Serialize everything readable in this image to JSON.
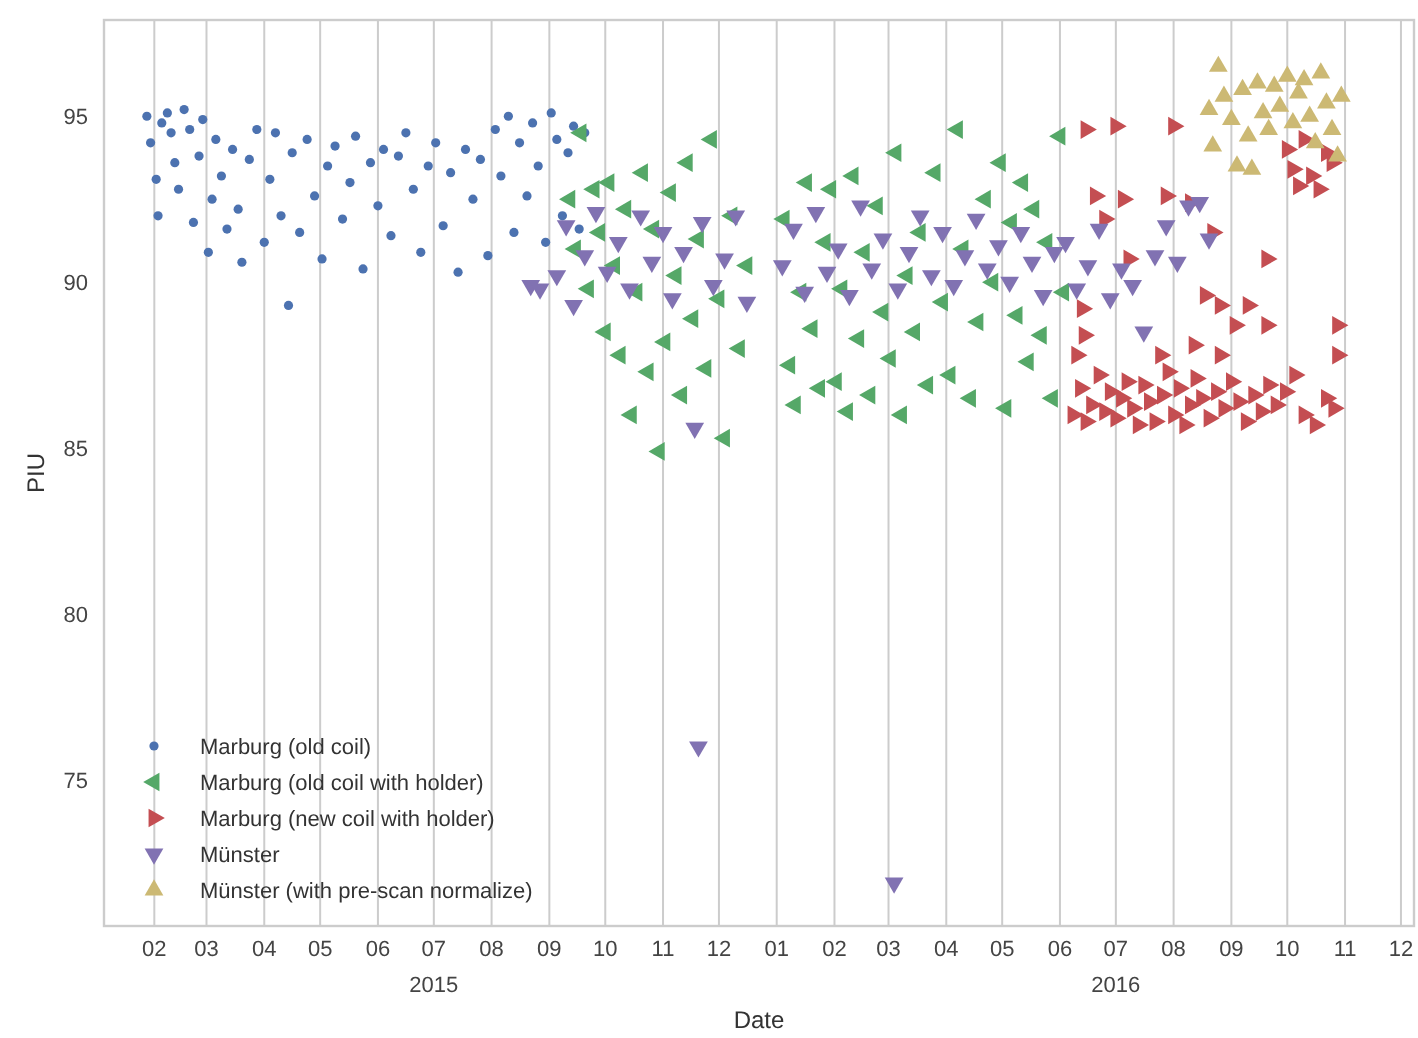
{
  "chart_data": {
    "type": "scatter",
    "xlabel": "Date",
    "ylabel": "PIU",
    "xlim": [
      "2015-01-05",
      "2016-12-08"
    ],
    "ylim": [
      70.6,
      97.9
    ],
    "yticks": [
      75,
      80,
      85,
      90,
      95
    ],
    "xticks": [
      {
        "value": "2015-02-01",
        "label": "02"
      },
      {
        "value": "2015-03-01",
        "label": "03"
      },
      {
        "value": "2015-04-01",
        "label": "04"
      },
      {
        "value": "2015-05-01",
        "label": "05"
      },
      {
        "value": "2015-06-01",
        "label": "06"
      },
      {
        "value": "2015-07-01",
        "label": "07\n2015"
      },
      {
        "value": "2015-08-01",
        "label": "08"
      },
      {
        "value": "2015-09-01",
        "label": "09"
      },
      {
        "value": "2015-10-01",
        "label": "10"
      },
      {
        "value": "2015-11-01",
        "label": "11"
      },
      {
        "value": "2015-12-01",
        "label": "12"
      },
      {
        "value": "2016-01-01",
        "label": "01"
      },
      {
        "value": "2016-02-01",
        "label": "02"
      },
      {
        "value": "2016-03-01",
        "label": "03"
      },
      {
        "value": "2016-04-01",
        "label": "04"
      },
      {
        "value": "2016-05-01",
        "label": "05"
      },
      {
        "value": "2016-06-01",
        "label": "06"
      },
      {
        "value": "2016-07-01",
        "label": "07\n2016"
      },
      {
        "value": "2016-08-01",
        "label": "08"
      },
      {
        "value": "2016-09-01",
        "label": "09"
      },
      {
        "value": "2016-10-01",
        "label": "10"
      },
      {
        "value": "2016-11-01",
        "label": "11"
      },
      {
        "value": "2016-12-01",
        "label": "12"
      }
    ],
    "grid": "x",
    "legend": "bottom left",
    "series": [
      {
        "name": "Marburg (old coil)",
        "color": "#4c72b0",
        "marker": "circle",
        "x": [
          "2015-01-28",
          "2015-01-30",
          "2015-02-02",
          "2015-02-03",
          "2015-02-05",
          "2015-02-08",
          "2015-02-10",
          "2015-02-12",
          "2015-02-14",
          "2015-02-17",
          "2015-02-20",
          "2015-02-22",
          "2015-02-25",
          "2015-02-27",
          "2015-03-02",
          "2015-03-04",
          "2015-03-06",
          "2015-03-09",
          "2015-03-12",
          "2015-03-15",
          "2015-03-18",
          "2015-03-20",
          "2015-03-24",
          "2015-03-28",
          "2015-04-01",
          "2015-04-04",
          "2015-04-07",
          "2015-04-10",
          "2015-04-14",
          "2015-04-16",
          "2015-04-20",
          "2015-04-24",
          "2015-04-28",
          "2015-05-02",
          "2015-05-05",
          "2015-05-09",
          "2015-05-13",
          "2015-05-17",
          "2015-05-20",
          "2015-05-24",
          "2015-05-28",
          "2015-06-01",
          "2015-06-04",
          "2015-06-08",
          "2015-06-12",
          "2015-06-16",
          "2015-06-20",
          "2015-06-24",
          "2015-06-28",
          "2015-07-02",
          "2015-07-06",
          "2015-07-10",
          "2015-07-14",
          "2015-07-18",
          "2015-07-22",
          "2015-07-26",
          "2015-07-30",
          "2015-08-03",
          "2015-08-06",
          "2015-08-10",
          "2015-08-13",
          "2015-08-16",
          "2015-08-20",
          "2015-08-23",
          "2015-08-26",
          "2015-08-30",
          "2015-09-02",
          "2015-09-05",
          "2015-09-08",
          "2015-09-11",
          "2015-09-14",
          "2015-09-17",
          "2015-09-20"
        ],
        "values": [
          95.0,
          94.2,
          93.1,
          92.0,
          94.8,
          95.1,
          94.5,
          93.6,
          92.8,
          95.2,
          94.6,
          91.8,
          93.8,
          94.9,
          90.9,
          92.5,
          94.3,
          93.2,
          91.6,
          94.0,
          92.2,
          90.6,
          93.7,
          94.6,
          91.2,
          93.1,
          94.5,
          92.0,
          89.3,
          93.9,
          91.5,
          94.3,
          92.6,
          90.7,
          93.5,
          94.1,
          91.9,
          93.0,
          94.4,
          90.4,
          93.6,
          92.3,
          94.0,
          91.4,
          93.8,
          94.5,
          92.8,
          90.9,
          93.5,
          94.2,
          91.7,
          93.3,
          90.3,
          94.0,
          92.5,
          93.7,
          90.8,
          94.6,
          93.2,
          95.0,
          91.5,
          94.2,
          92.6,
          94.8,
          93.5,
          91.2,
          95.1,
          94.3,
          92.0,
          93.9,
          94.7,
          91.6,
          94.5
        ]
      },
      {
        "name": "Marburg (old coil with holder)",
        "color": "#55a868",
        "marker": "triangle-left",
        "x": [
          "2015-09-12",
          "2015-09-15",
          "2015-09-18",
          "2015-09-22",
          "2015-09-25",
          "2015-09-28",
          "2015-10-01",
          "2015-10-03",
          "2015-10-06",
          "2015-10-09",
          "2015-10-12",
          "2015-10-15",
          "2015-10-18",
          "2015-10-21",
          "2015-10-24",
          "2015-10-27",
          "2015-10-30",
          "2015-11-02",
          "2015-11-05",
          "2015-11-08",
          "2015-11-11",
          "2015-11-14",
          "2015-11-17",
          "2015-11-20",
          "2015-11-24",
          "2015-11-27",
          "2015-12-01",
          "2015-12-04",
          "2015-12-08",
          "2015-12-12",
          "2015-12-16",
          "2016-01-05",
          "2016-01-08",
          "2016-01-11",
          "2016-01-14",
          "2016-01-17",
          "2016-01-20",
          "2016-01-24",
          "2016-01-27",
          "2016-01-30",
          "2016-02-02",
          "2016-02-05",
          "2016-02-08",
          "2016-02-11",
          "2016-02-14",
          "2016-02-17",
          "2016-02-20",
          "2016-02-24",
          "2016-02-27",
          "2016-03-02",
          "2016-03-05",
          "2016-03-08",
          "2016-03-11",
          "2016-03-15",
          "2016-03-18",
          "2016-03-22",
          "2016-03-26",
          "2016-03-30",
          "2016-04-03",
          "2016-04-07",
          "2016-04-10",
          "2016-04-14",
          "2016-04-18",
          "2016-04-22",
          "2016-04-26",
          "2016-04-30",
          "2016-05-03",
          "2016-05-06",
          "2016-05-09",
          "2016-05-12",
          "2016-05-15",
          "2016-05-18",
          "2016-05-22",
          "2016-05-25",
          "2016-05-28",
          "2016-06-01",
          "2016-06-03"
        ],
        "values": [
          92.5,
          91.0,
          94.5,
          89.8,
          92.8,
          91.5,
          88.5,
          93.0,
          90.5,
          87.8,
          92.2,
          86.0,
          89.7,
          93.3,
          87.3,
          91.6,
          84.9,
          88.2,
          92.7,
          90.2,
          86.6,
          93.6,
          88.9,
          91.3,
          87.4,
          94.3,
          89.5,
          85.3,
          92.0,
          88.0,
          90.5,
          91.9,
          87.5,
          86.3,
          89.7,
          93.0,
          88.6,
          86.8,
          91.2,
          92.8,
          87.0,
          89.8,
          86.1,
          93.2,
          88.3,
          90.9,
          86.6,
          92.3,
          89.1,
          87.7,
          93.9,
          86.0,
          90.2,
          88.5,
          91.5,
          86.9,
          93.3,
          89.4,
          87.2,
          94.6,
          91.0,
          86.5,
          88.8,
          92.5,
          90.0,
          93.6,
          86.2,
          91.8,
          89.0,
          93.0,
          87.6,
          92.2,
          88.4,
          91.2,
          86.5,
          94.4,
          89.7
        ]
      },
      {
        "name": "Marburg (new coil with holder)",
        "color": "#c44e52",
        "marker": "triangle-right",
        "x": [
          "2016-06-08",
          "2016-06-12",
          "2016-06-15",
          "2016-06-18",
          "2016-06-22",
          "2016-06-25",
          "2016-06-28",
          "2016-07-01",
          "2016-07-04",
          "2016-07-07",
          "2016-07-10",
          "2016-07-13",
          "2016-07-16",
          "2016-07-19",
          "2016-07-22",
          "2016-07-26",
          "2016-07-29",
          "2016-08-01",
          "2016-08-04",
          "2016-08-07",
          "2016-08-10",
          "2016-08-13",
          "2016-08-16",
          "2016-08-20",
          "2016-08-24",
          "2016-08-28",
          "2016-09-01",
          "2016-09-05",
          "2016-09-09",
          "2016-09-13",
          "2016-09-17",
          "2016-09-21",
          "2016-09-25",
          "2016-09-30",
          "2016-10-05",
          "2016-10-10",
          "2016-10-16",
          "2016-10-22",
          "2016-10-26",
          "2016-06-15",
          "2016-07-01",
          "2016-08-01",
          "2016-06-20",
          "2016-07-05",
          "2016-07-28",
          "2016-08-10",
          "2016-08-22",
          "2016-09-20",
          "2016-10-28",
          "2016-10-28",
          "2016-08-18",
          "2016-08-26",
          "2016-09-10",
          "2016-09-03",
          "2016-09-20",
          "2016-08-12",
          "2016-08-26",
          "2016-07-25",
          "2016-06-10",
          "2016-06-14",
          "2016-06-13",
          "2016-06-25",
          "2016-07-08",
          "2016-10-01",
          "2016-10-04",
          "2016-10-07",
          "2016-10-10",
          "2016-10-14",
          "2016-10-18",
          "2016-10-22",
          "2016-10-25"
        ],
        "values": [
          86.0,
          86.8,
          85.8,
          86.3,
          87.2,
          86.1,
          86.7,
          85.9,
          86.5,
          87.0,
          86.2,
          85.7,
          86.9,
          86.4,
          85.8,
          86.6,
          87.3,
          86.0,
          86.8,
          85.7,
          86.3,
          87.1,
          86.5,
          85.9,
          86.7,
          86.2,
          87.0,
          86.4,
          85.8,
          86.6,
          86.1,
          86.9,
          86.3,
          86.7,
          87.2,
          86.0,
          85.7,
          86.5,
          86.2,
          94.6,
          94.7,
          94.7,
          92.6,
          92.5,
          92.6,
          92.4,
          91.5,
          90.7,
          88.7,
          87.8,
          89.6,
          89.3,
          89.3,
          88.7,
          88.7,
          88.1,
          87.8,
          87.8,
          87.8,
          88.4,
          89.2,
          91.9,
          90.7,
          94.0,
          93.4,
          92.9,
          94.3,
          93.2,
          92.8,
          93.9,
          93.6
        ]
      },
      {
        "name": "Münster",
        "color": "#8172b2",
        "marker": "triangle-down",
        "x": [
          "2015-08-22",
          "2015-08-27",
          "2015-09-05",
          "2015-09-10",
          "2015-09-14",
          "2015-09-20",
          "2015-09-26",
          "2015-10-02",
          "2015-10-08",
          "2015-10-14",
          "2015-10-20",
          "2015-10-26",
          "2015-11-01",
          "2015-11-06",
          "2015-11-12",
          "2015-11-18",
          "2015-11-20",
          "2015-11-22",
          "2015-11-28",
          "2015-12-04",
          "2015-12-10",
          "2015-12-16",
          "2016-01-04",
          "2016-01-10",
          "2016-01-16",
          "2016-01-22",
          "2016-01-28",
          "2016-02-03",
          "2016-02-09",
          "2016-02-15",
          "2016-02-21",
          "2016-02-27",
          "2016-03-04",
          "2016-03-06",
          "2016-03-12",
          "2016-03-18",
          "2016-03-24",
          "2016-03-30",
          "2016-04-05",
          "2016-04-11",
          "2016-04-17",
          "2016-04-23",
          "2016-04-29",
          "2016-05-05",
          "2016-05-11",
          "2016-05-17",
          "2016-05-23",
          "2016-05-29",
          "2016-06-04",
          "2016-06-10",
          "2016-06-16",
          "2016-06-22",
          "2016-06-28",
          "2016-07-04",
          "2016-07-10",
          "2016-07-16",
          "2016-07-22",
          "2016-07-28",
          "2016-08-03",
          "2016-08-09",
          "2016-08-15",
          "2016-08-20"
        ],
        "values": [
          89.9,
          89.8,
          90.2,
          91.7,
          89.3,
          90.8,
          92.1,
          90.3,
          91.2,
          89.8,
          92.0,
          90.6,
          91.5,
          89.5,
          90.9,
          85.6,
          76.0,
          91.8,
          89.9,
          90.7,
          92.0,
          89.4,
          90.5,
          91.6,
          89.7,
          92.1,
          90.3,
          91.0,
          89.6,
          92.3,
          90.4,
          91.3,
          71.9,
          89.8,
          90.9,
          92.0,
          90.2,
          91.5,
          89.9,
          90.8,
          91.9,
          90.4,
          91.1,
          90.0,
          91.5,
          90.6,
          89.6,
          90.9,
          91.2,
          89.8,
          90.5,
          91.6,
          89.5,
          90.4,
          89.9,
          88.5,
          90.8,
          91.7,
          90.6,
          92.3,
          92.4,
          91.3
        ]
      },
      {
        "name": "Münster (with pre-scan normalize)",
        "color": "#ccb974",
        "marker": "triangle-up",
        "x": [
          "2016-08-20",
          "2016-08-22",
          "2016-08-25",
          "2016-08-28",
          "2016-09-01",
          "2016-09-04",
          "2016-09-07",
          "2016-09-10",
          "2016-09-12",
          "2016-09-15",
          "2016-09-18",
          "2016-09-21",
          "2016-09-24",
          "2016-09-27",
          "2016-10-01",
          "2016-10-04",
          "2016-10-07",
          "2016-10-10",
          "2016-10-13",
          "2016-10-16",
          "2016-10-19",
          "2016-10-22",
          "2016-10-25",
          "2016-10-28",
          "2016-10-30"
        ],
        "values": [
          95.2,
          94.1,
          96.5,
          95.6,
          94.9,
          93.5,
          95.8,
          94.4,
          93.4,
          96.0,
          95.1,
          94.6,
          95.9,
          95.3,
          96.2,
          94.8,
          95.7,
          96.1,
          95.0,
          94.2,
          96.3,
          95.4,
          94.6,
          93.8,
          95.6
        ]
      }
    ]
  }
}
